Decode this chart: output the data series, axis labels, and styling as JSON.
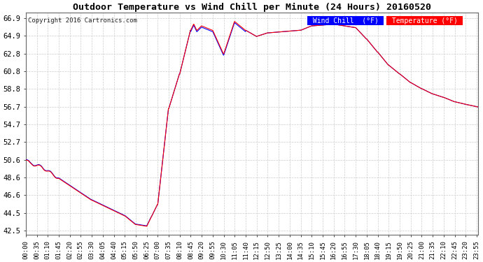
{
  "title": "Outdoor Temperature vs Wind Chill per Minute (24 Hours) 20160520",
  "copyright": "Copyright 2016 Cartronics.com",
  "ylabel_ticks": [
    42.5,
    44.5,
    46.6,
    48.6,
    50.6,
    52.7,
    54.7,
    56.7,
    58.8,
    60.8,
    62.8,
    64.9,
    66.9
  ],
  "ylim": [
    42.0,
    67.5
  ],
  "background_color": "#ffffff",
  "grid_color": "#cccccc",
  "line_color_temp": "#ff0000",
  "line_color_wind": "#0000ff",
  "legend_wind_bg": "#0000ff",
  "legend_temp_bg": "#ff0000",
  "legend_text_color": "#ffffff",
  "xtick_labels": [
    "00:00",
    "00:35",
    "01:10",
    "01:45",
    "02:20",
    "02:55",
    "03:30",
    "04:05",
    "04:40",
    "05:15",
    "05:50",
    "06:25",
    "07:00",
    "07:35",
    "08:10",
    "08:45",
    "09:20",
    "09:55",
    "10:30",
    "11:05",
    "11:40",
    "12:15",
    "12:50",
    "13:25",
    "14:00",
    "14:35",
    "15:10",
    "15:45",
    "16:20",
    "16:55",
    "17:30",
    "18:05",
    "18:40",
    "19:15",
    "19:50",
    "20:25",
    "21:00",
    "21:35",
    "22:10",
    "22:45",
    "23:20",
    "23:55"
  ]
}
